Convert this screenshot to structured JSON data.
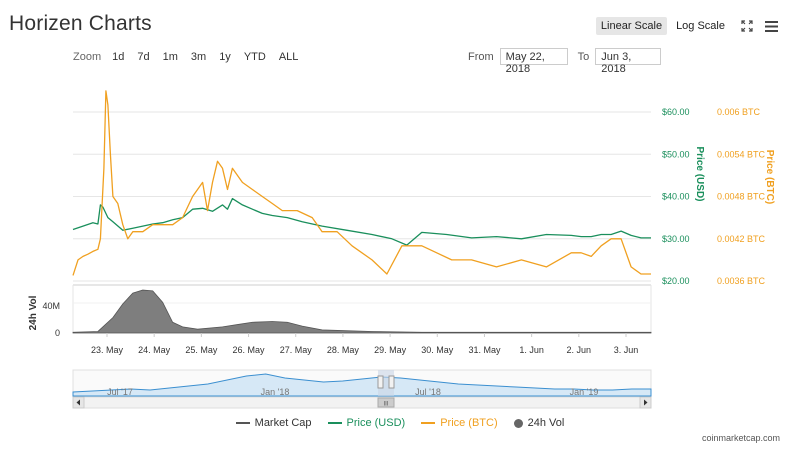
{
  "title": "Horizen Charts",
  "scale": {
    "linear": "Linear Scale",
    "log": "Log Scale"
  },
  "zoom": {
    "label": "Zoom",
    "buttons": [
      "1d",
      "7d",
      "1m",
      "3m",
      "1y",
      "YTD",
      "ALL"
    ]
  },
  "range": {
    "from_label": "From",
    "from": "May 22, 2018",
    "to_label": "To",
    "to": "Jun 3, 2018"
  },
  "colors": {
    "usd": "#1a8f5c",
    "btc": "#f0a020",
    "vol": "#666666",
    "navigator": "#3b8fd0",
    "mcap": "#555555"
  },
  "legend": {
    "market_cap": "Market Cap",
    "price_usd": "Price (USD)",
    "price_btc": "Price (BTC)",
    "vol": "24h Vol"
  },
  "credit": "coinmarketcap.com",
  "navigator": {
    "labels": [
      "Jul '17",
      "Jan '18",
      "Jul '18",
      "Jan '19"
    ],
    "handle": "III"
  },
  "chart_data": {
    "type": "line",
    "x_ticks": [
      "23. May",
      "24. May",
      "25. May",
      "26. May",
      "27. May",
      "28. May",
      "29. May",
      "30. May",
      "31. May",
      "1. Jun",
      "2. Jun",
      "3. Jun"
    ],
    "y_usd": {
      "label": "Price (USD)",
      "ticks": [
        "$20.00",
        "$30.00",
        "$40.00",
        "$50.00",
        "$60.00"
      ],
      "range": [
        20,
        60
      ]
    },
    "y_btc": {
      "label": "Price (BTC)",
      "ticks": [
        "0.0036 BTC",
        "0.0042 BTC",
        "0.0048 BTC",
        "0.0054 BTC",
        "0.006 BTC"
      ],
      "range": [
        0.0036,
        0.006
      ]
    },
    "y_vol": {
      "label": "24h Vol",
      "ticks": [
        "0",
        "40M"
      ]
    },
    "series": [
      {
        "name": "Price (USD)",
        "axis": "usd",
        "x": [
          0,
          0.2,
          0.4,
          0.5,
          0.55,
          0.6,
          0.7,
          0.8,
          1.0,
          1.2,
          1.4,
          1.6,
          1.8,
          2.0,
          2.2,
          2.4,
          2.6,
          2.8,
          3.0,
          3.1,
          3.2,
          3.4,
          3.6,
          3.8,
          4.0,
          4.3,
          4.6,
          5.0,
          5.5,
          6.0,
          6.4,
          6.7,
          7.0,
          7.5,
          8.0,
          8.5,
          9.0,
          9.5,
          10.0,
          10.2,
          10.4,
          10.6,
          10.8,
          11.0,
          11.2,
          11.4,
          11.6
        ],
        "y": [
          32.2,
          33.0,
          33.8,
          33.5,
          38.0,
          37.5,
          35.0,
          34.0,
          32.0,
          32.5,
          33.0,
          33.5,
          33.8,
          34.5,
          35.0,
          37.0,
          37.2,
          36.5,
          38.0,
          37.0,
          39.5,
          38.0,
          37.0,
          36.0,
          35.5,
          35.0,
          34.0,
          33.0,
          32.0,
          31.0,
          30.0,
          28.5,
          31.5,
          31.0,
          30.2,
          30.5,
          30.0,
          31.0,
          30.8,
          30.5,
          30.5,
          31.0,
          31.0,
          31.8,
          30.8,
          30.2,
          30.2
        ]
      },
      {
        "name": "Price (BTC)",
        "axis": "btc",
        "x": [
          0,
          0.1,
          0.2,
          0.3,
          0.4,
          0.5,
          0.55,
          0.62,
          0.66,
          0.7,
          0.75,
          0.8,
          0.9,
          1.0,
          1.1,
          1.2,
          1.4,
          1.6,
          1.8,
          2.0,
          2.2,
          2.4,
          2.6,
          2.7,
          2.8,
          2.9,
          3.0,
          3.1,
          3.2,
          3.4,
          3.6,
          3.8,
          4.0,
          4.2,
          4.5,
          4.8,
          5.0,
          5.3,
          5.6,
          6.0,
          6.3,
          6.6,
          6.8,
          7.0,
          7.3,
          7.6,
          8.0,
          8.5,
          9.0,
          9.5,
          10.0,
          10.2,
          10.4,
          10.6,
          10.8,
          11.0,
          11.2,
          11.4,
          11.6
        ],
        "y": [
          0.00368,
          0.0039,
          0.00395,
          0.00398,
          0.00402,
          0.00405,
          0.0042,
          0.0052,
          0.0063,
          0.0061,
          0.0054,
          0.0048,
          0.0047,
          0.0044,
          0.0042,
          0.0043,
          0.0043,
          0.0044,
          0.0044,
          0.0044,
          0.0045,
          0.0048,
          0.005,
          0.0046,
          0.005,
          0.0053,
          0.0052,
          0.0049,
          0.0052,
          0.005,
          0.0049,
          0.0048,
          0.0047,
          0.0046,
          0.0046,
          0.0045,
          0.0043,
          0.0043,
          0.0041,
          0.0039,
          0.0037,
          0.0041,
          0.0041,
          0.0041,
          0.004,
          0.0039,
          0.0039,
          0.0038,
          0.0039,
          0.0038,
          0.004,
          0.004,
          0.00395,
          0.0041,
          0.0042,
          0.0042,
          0.0038,
          0.0037,
          0.0037
        ]
      },
      {
        "name": "24h Vol",
        "axis": "vol",
        "x": [
          0,
          0.5,
          0.8,
          1.0,
          1.2,
          1.4,
          1.6,
          1.8,
          2.0,
          2.2,
          2.5,
          3.0,
          3.3,
          3.6,
          4.0,
          4.3,
          4.6,
          5.0,
          6.0,
          7.0,
          11.6
        ],
        "y": [
          1,
          2,
          20,
          38,
          52,
          56,
          55,
          40,
          14,
          8,
          5,
          8,
          11,
          14,
          15,
          14,
          9,
          4,
          2,
          1,
          1
        ]
      }
    ],
    "grid": true
  }
}
